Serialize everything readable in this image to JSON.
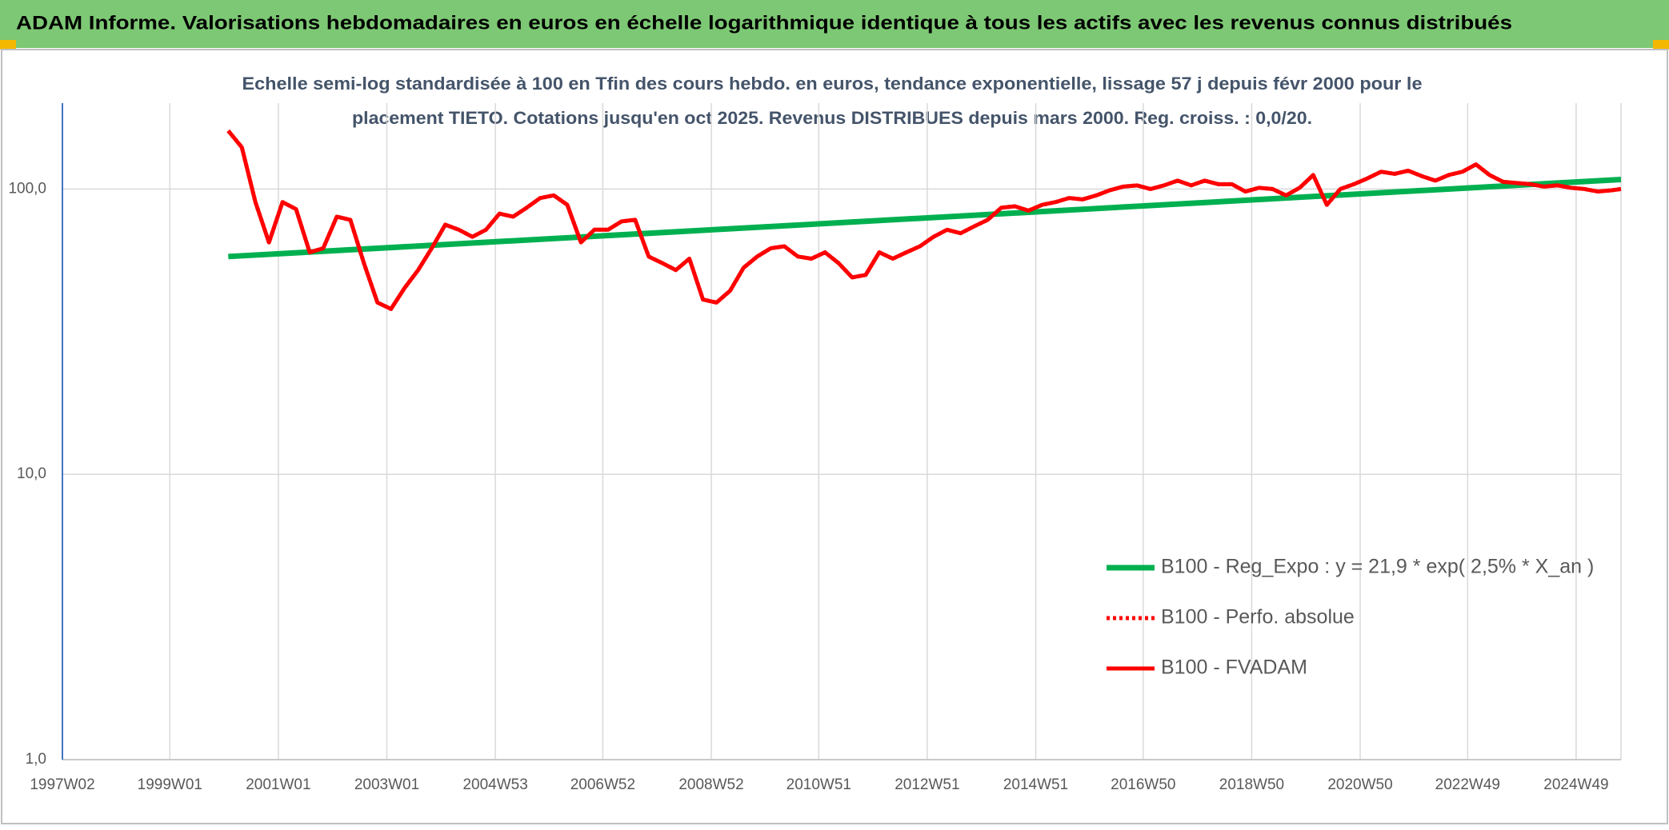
{
  "chart_data": {
    "type": "line",
    "title": "ADAM Informe. Valorisations hebdomadaires en euros en échelle logarithmique identique à tous les actifs avec les revenus connus distribués",
    "subtitle": [
      "Echelle semi-log standardisée à 100 en Tfin des cours hebdo. en euros, tendance exponentielle, lissage 57 j depuis févr 2000 pour le",
      "placement TIETO. Cotations jusqu'en oct 2025. Revenus DISTRIBUES depuis mars 2000. Reg. croiss. : 0,0/20."
    ],
    "log_scale": true,
    "grid": true,
    "legend": "right",
    "ylim": [
      1,
      200
    ],
    "yticks": [
      {
        "value": 1,
        "label": "1,0"
      },
      {
        "value": 10,
        "label": "10,0"
      },
      {
        "value": 100,
        "label": "100,0"
      }
    ],
    "xlim": [
      "1997W02",
      "2025W40"
    ],
    "xticks": [
      "1997W02",
      "1999W01",
      "2001W01",
      "2003W01",
      "2004W53",
      "2006W52",
      "2008W52",
      "2010W51",
      "2012W51",
      "2014W51",
      "2016W50",
      "2018W50",
      "2020W50",
      "2022W49",
      "2024W49"
    ],
    "x": [
      "2000W05",
      "2000W18",
      "2000W31",
      "2000W44",
      "2001W05",
      "2001W18",
      "2001W31",
      "2001W44",
      "2002W05",
      "2002W18",
      "2002W31",
      "2002W44",
      "2003W05",
      "2003W18",
      "2003W31",
      "2003W44",
      "2004W05",
      "2004W18",
      "2004W31",
      "2004W44",
      "2005W05",
      "2005W18",
      "2005W31",
      "2005W44",
      "2006W05",
      "2006W18",
      "2006W31",
      "2006W44",
      "2007W05",
      "2007W18",
      "2007W31",
      "2007W44",
      "2008W05",
      "2008W18",
      "2008W31",
      "2008W44",
      "2009W05",
      "2009W18",
      "2009W31",
      "2009W44",
      "2010W05",
      "2010W18",
      "2010W31",
      "2010W44",
      "2011W05",
      "2011W18",
      "2011W31",
      "2011W44",
      "2012W05",
      "2012W18",
      "2012W31",
      "2012W44",
      "2013W05",
      "2013W18",
      "2013W31",
      "2013W44",
      "2014W05",
      "2014W18",
      "2014W31",
      "2014W44",
      "2015W05",
      "2015W18",
      "2015W31",
      "2015W44",
      "2016W05",
      "2016W18",
      "2016W31",
      "2016W44",
      "2017W05",
      "2017W18",
      "2017W31",
      "2017W44",
      "2018W05",
      "2018W18",
      "2018W31",
      "2018W44",
      "2019W05",
      "2019W18",
      "2019W31",
      "2019W44",
      "2020W05",
      "2020W18",
      "2020W31",
      "2020W44",
      "2021W05",
      "2021W18",
      "2021W31",
      "2021W44",
      "2022W05",
      "2022W18",
      "2022W31",
      "2022W44",
      "2023W05",
      "2023W18",
      "2023W31",
      "2023W44",
      "2024W05",
      "2024W18",
      "2024W31",
      "2024W44",
      "2025W05",
      "2025W18",
      "2025W31",
      "2025W40"
    ],
    "series": [
      {
        "name": "B100 - Reg_Expo : y = 21,9 * exp( 2,5% *  X_an )",
        "color": "#00b050",
        "style": "solid",
        "x": [
          "2000W05",
          "2025W40"
        ],
        "values": [
          58,
          108
        ]
      },
      {
        "name": "B100 - Perfo. absolue",
        "color": "#ff0000",
        "style": "dotted",
        "values": [
          160,
          140,
          90,
          65,
          90,
          85,
          60,
          62,
          80,
          78,
          55,
          40,
          38,
          45,
          52,
          62,
          75,
          72,
          68,
          72,
          82,
          80,
          86,
          93,
          95,
          88,
          65,
          72,
          72,
          77,
          78,
          58,
          55,
          52,
          57,
          41,
          40,
          44,
          53,
          58,
          62,
          63,
          58,
          57,
          60,
          55,
          49,
          50,
          60,
          57,
          60,
          63,
          68,
          72,
          70,
          74,
          78,
          86,
          87,
          84,
          88,
          90,
          93,
          92,
          95,
          99,
          102,
          103,
          100,
          103,
          107,
          103,
          107,
          104,
          104,
          98,
          101,
          100,
          95,
          101,
          112,
          88,
          100,
          104,
          109,
          115,
          113,
          116,
          111,
          107,
          112,
          115,
          122,
          112,
          106,
          105,
          104,
          102,
          103,
          101,
          100,
          98,
          99,
          100
        ]
      },
      {
        "name": "B100 - FVADAM",
        "color": "#ff0000",
        "style": "solid",
        "values": [
          160,
          140,
          90,
          65,
          90,
          85,
          60,
          62,
          80,
          78,
          55,
          40,
          38,
          45,
          52,
          62,
          75,
          72,
          68,
          72,
          82,
          80,
          86,
          93,
          95,
          88,
          65,
          72,
          72,
          77,
          78,
          58,
          55,
          52,
          57,
          41,
          40,
          44,
          53,
          58,
          62,
          63,
          58,
          57,
          60,
          55,
          49,
          50,
          60,
          57,
          60,
          63,
          68,
          72,
          70,
          74,
          78,
          86,
          87,
          84,
          88,
          90,
          93,
          92,
          95,
          99,
          102,
          103,
          100,
          103,
          107,
          103,
          107,
          104,
          104,
          98,
          101,
          100,
          95,
          101,
          112,
          88,
          100,
          104,
          109,
          115,
          113,
          116,
          111,
          107,
          112,
          115,
          122,
          112,
          106,
          105,
          104,
          102,
          103,
          101,
          100,
          98,
          99,
          100
        ]
      }
    ]
  }
}
